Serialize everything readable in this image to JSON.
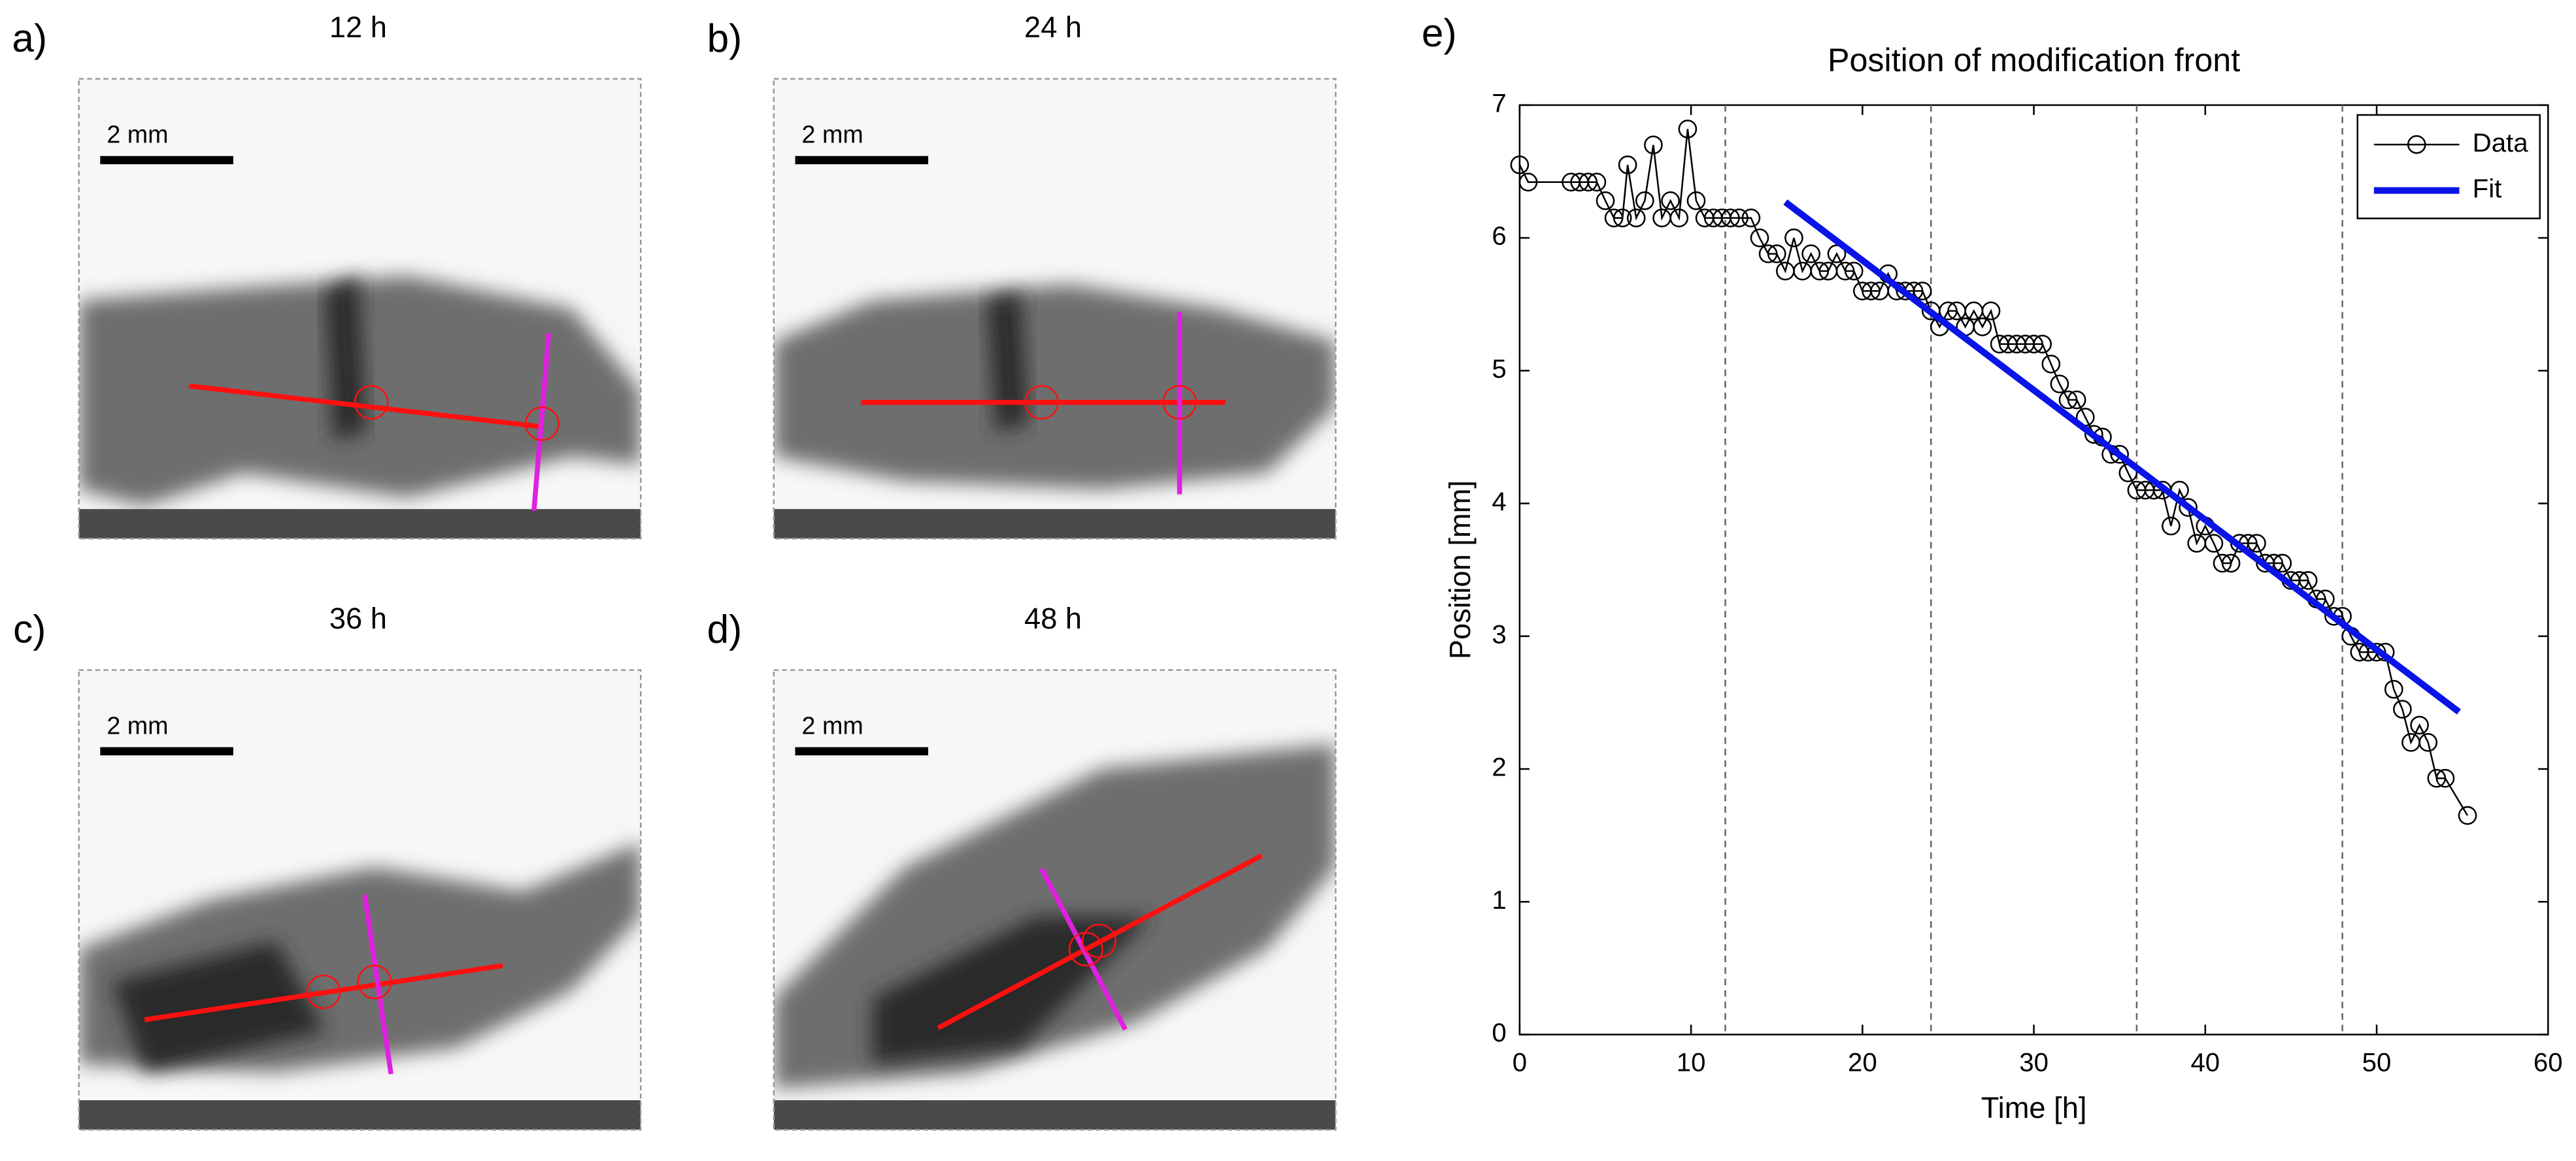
{
  "panels": [
    {
      "label": "a)",
      "time": "12 h",
      "scale": "2 mm"
    },
    {
      "label": "b)",
      "time": "24 h",
      "scale": "2 mm"
    },
    {
      "label": "c)",
      "time": "36 h",
      "scale": "2 mm"
    },
    {
      "label": "d)",
      "time": "48 h",
      "scale": "2 mm"
    }
  ],
  "chart_data": {
    "type": "line",
    "panel_label": "e)",
    "title": "Position of modification front",
    "x_label": "Time [h]",
    "y_label": "Position [mm]",
    "xlim": [
      0,
      60
    ],
    "xticks": [
      0,
      10,
      20,
      30,
      40,
      50,
      60
    ],
    "ylim": [
      0,
      7
    ],
    "yticks": [
      0,
      1,
      2,
      3,
      4,
      5,
      6,
      7
    ],
    "reference_lines": [
      12,
      24,
      36,
      48
    ],
    "legend": "upper right",
    "series": [
      {
        "name": "Data",
        "color": "#000000",
        "marker": "circle",
        "x": [
          0,
          0.5,
          3,
          3.5,
          4,
          4.5,
          5,
          5.5,
          6,
          6.3,
          6.8,
          7.3,
          7.8,
          8.3,
          8.8,
          9.3,
          9.8,
          10.3,
          10.8,
          11.3,
          11.8,
          12.3,
          12.8,
          13.5,
          14,
          14.5,
          15,
          15.5,
          16,
          16.5,
          17,
          17.5,
          18,
          18.5,
          19,
          19.5,
          20,
          20.5,
          21,
          21.5,
          22,
          22.5,
          23,
          23.5,
          24,
          24.5,
          25,
          25.5,
          26,
          26.5,
          27,
          27.5,
          28,
          28.5,
          29,
          29.5,
          30,
          30.5,
          31,
          31.5,
          32,
          32.5,
          33,
          33.5,
          34,
          34.5,
          35,
          35.5,
          36,
          36.5,
          37,
          37.5,
          38,
          38.5,
          39,
          39.5,
          40,
          40.5,
          41,
          41.5,
          42,
          42.5,
          43,
          43.5,
          44,
          44.5,
          45,
          45.5,
          46,
          46.5,
          47,
          47.5,
          48,
          48.5,
          49,
          49.5,
          50,
          50.5,
          51,
          51.5,
          52,
          52.5,
          53,
          53.5,
          54,
          55.3
        ],
        "values": [
          6.55,
          6.42,
          6.42,
          6.42,
          6.42,
          6.42,
          6.28,
          6.15,
          6.15,
          6.55,
          6.15,
          6.28,
          6.7,
          6.15,
          6.28,
          6.15,
          6.82,
          6.28,
          6.15,
          6.15,
          6.15,
          6.15,
          6.15,
          6.15,
          6.0,
          5.88,
          5.88,
          5.75,
          6.0,
          5.75,
          5.88,
          5.75,
          5.75,
          5.88,
          5.75,
          5.75,
          5.6,
          5.6,
          5.6,
          5.73,
          5.6,
          5.6,
          5.6,
          5.6,
          5.45,
          5.33,
          5.45,
          5.45,
          5.33,
          5.45,
          5.33,
          5.45,
          5.2,
          5.2,
          5.2,
          5.2,
          5.2,
          5.2,
          5.05,
          4.9,
          4.78,
          4.78,
          4.65,
          4.52,
          4.5,
          4.37,
          4.37,
          4.23,
          4.1,
          4.1,
          4.1,
          4.1,
          3.83,
          4.1,
          3.97,
          3.7,
          3.83,
          3.7,
          3.55,
          3.55,
          3.7,
          3.7,
          3.7,
          3.55,
          3.55,
          3.55,
          3.42,
          3.42,
          3.42,
          3.28,
          3.28,
          3.15,
          3.15,
          3.0,
          2.88,
          2.88,
          2.88,
          2.88,
          2.6,
          2.45,
          2.2,
          2.33,
          2.2,
          1.93,
          1.93,
          1.65
        ]
      },
      {
        "name": "Fit",
        "color": "#0a14e6",
        "x": [
          15.5,
          54.8
        ],
        "values": [
          6.27,
          2.43
        ]
      }
    ]
  }
}
